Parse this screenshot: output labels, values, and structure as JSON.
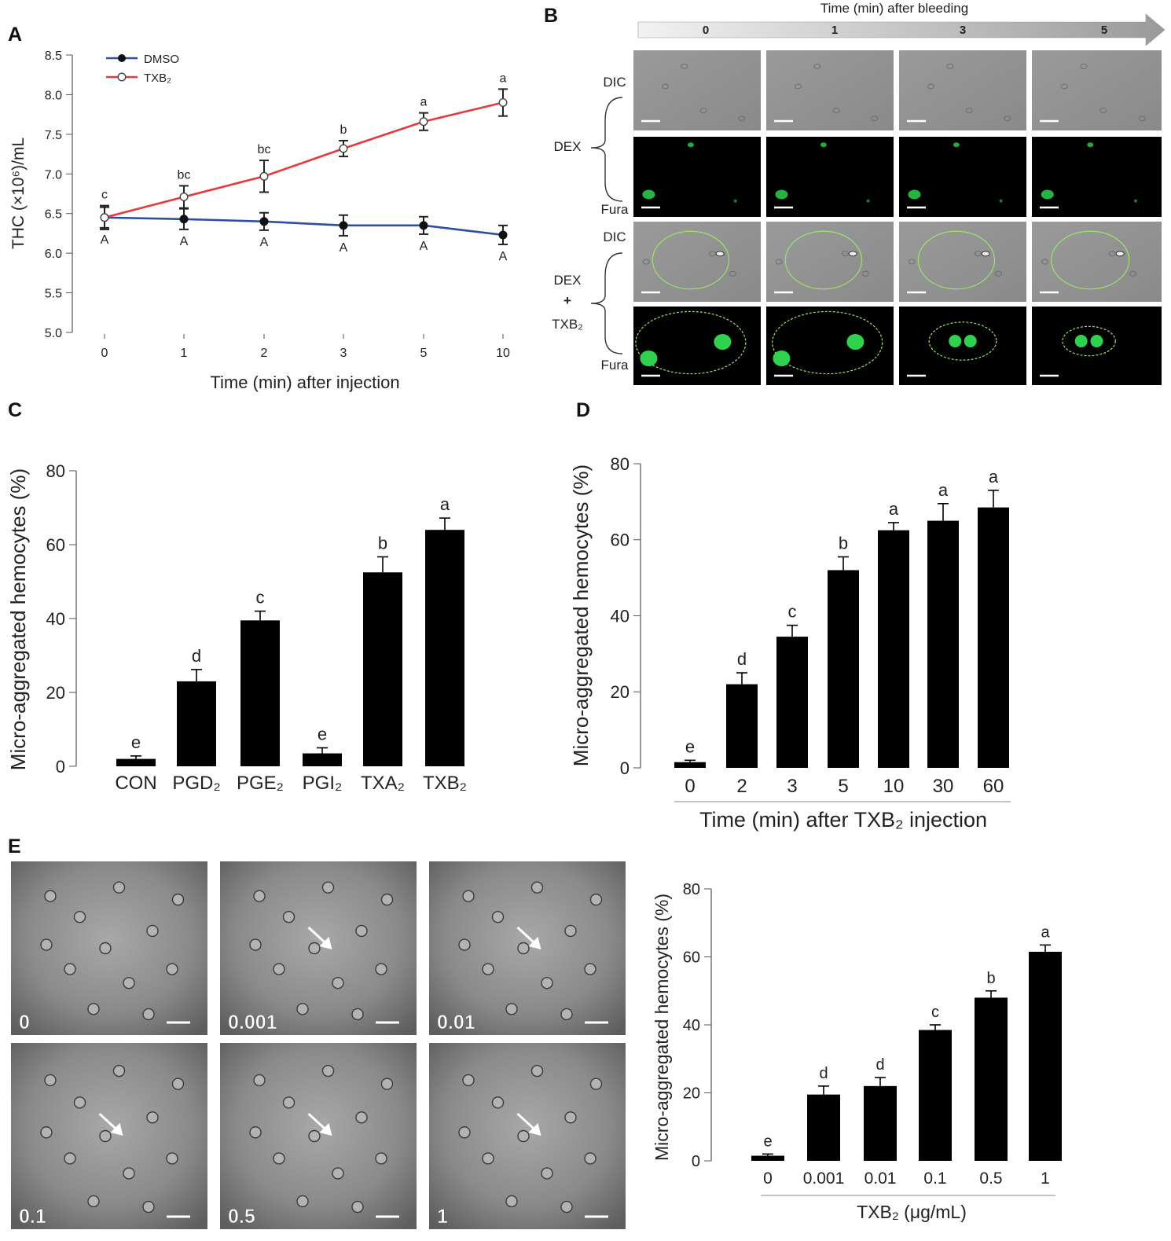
{
  "figure": {
    "panels": {
      "A": {
        "letter": "A"
      },
      "B": {
        "letter": "B"
      },
      "C": {
        "letter": "C"
      },
      "D": {
        "letter": "D"
      },
      "E": {
        "letter": "E"
      }
    }
  },
  "chart_data": [
    {
      "id": "A",
      "type": "line",
      "xlabel": "Time (min) after injection",
      "ylabel": "THC (×10⁶)/mL",
      "ylim": [
        5.0,
        8.5
      ],
      "yticks": [
        "5.0",
        "5.5",
        "6.0",
        "6.5",
        "7.0",
        "7.5",
        "8.0",
        "8.5"
      ],
      "categories": [
        "0",
        "1",
        "2",
        "3",
        "5",
        "10"
      ],
      "legend_position": "top-left",
      "series": [
        {
          "name": "DMSO",
          "color": "#2e4fa0",
          "marker": "filled-circle",
          "values": [
            6.45,
            6.43,
            6.4,
            6.35,
            6.35,
            6.23
          ],
          "errors": [
            0.13,
            0.13,
            0.11,
            0.13,
            0.11,
            0.12
          ],
          "letters": [
            "A",
            "A",
            "A",
            "A",
            "A",
            "A"
          ]
        },
        {
          "name": "TXB₂",
          "color": "#e8383d",
          "marker": "open-circle",
          "values": [
            6.45,
            6.71,
            6.97,
            7.32,
            7.66,
            7.9
          ],
          "errors": [
            0.15,
            0.14,
            0.2,
            0.1,
            0.11,
            0.17
          ],
          "letters": [
            "c",
            "bc",
            "bc",
            "b",
            "a",
            "a"
          ]
        }
      ]
    },
    {
      "id": "C",
      "type": "bar",
      "ylabel": "Micro-aggregated hemocytes (%)",
      "ylim": [
        0,
        80
      ],
      "yticks": [
        "0",
        "20",
        "40",
        "60",
        "80"
      ],
      "categories": [
        "CON",
        "PGD₂",
        "PGE₂",
        "PGI₂",
        "TXA₂",
        "TXB₂"
      ],
      "values": [
        2,
        23,
        39.5,
        3.5,
        52.5,
        64
      ],
      "errors": [
        0.8,
        3.2,
        2.5,
        1.5,
        4.2,
        3.2
      ],
      "letters": [
        "e",
        "d",
        "c",
        "e",
        "b",
        "a"
      ]
    },
    {
      "id": "D",
      "type": "bar",
      "xlabel": "Time (min) after TXB₂ injection",
      "ylabel": "Micro-aggregated hemocytes (%)",
      "ylim": [
        0,
        80
      ],
      "yticks": [
        "0",
        "20",
        "40",
        "60",
        "80"
      ],
      "categories": [
        "0",
        "2",
        "3",
        "5",
        "10",
        "30",
        "60"
      ],
      "values": [
        1.5,
        22,
        34.5,
        52,
        62.5,
        65,
        68.5
      ],
      "errors": [
        0.5,
        3,
        3,
        3.5,
        2,
        4.5,
        4.5
      ],
      "letters": [
        "e",
        "d",
        "c",
        "b",
        "a",
        "a",
        "a"
      ]
    },
    {
      "id": "E",
      "type": "bar",
      "xlabel": "TXB₂ (μg/mL)",
      "ylabel": "Micro-aggregated hemocytes (%)",
      "ylim": [
        0,
        80
      ],
      "yticks": [
        "0",
        "20",
        "40",
        "60",
        "80"
      ],
      "categories": [
        "0",
        "0.001",
        "0.01",
        "0.1",
        "0.5",
        "1"
      ],
      "values": [
        1.5,
        19.5,
        22,
        38.5,
        48,
        61.5
      ],
      "errors": [
        0.5,
        2.5,
        2.5,
        1.5,
        2,
        2
      ],
      "letters": [
        "e",
        "d",
        "d",
        "c",
        "b",
        "a"
      ]
    }
  ],
  "panel_b": {
    "arrow_title": "Time (min) after bleeding",
    "time_labels": [
      "0",
      "1",
      "3",
      "5"
    ],
    "group_labels": {
      "dex": "DEX",
      "dex_txb2_line1": "DEX",
      "dex_txb2_plus": "+",
      "dex_txb2_line2": "TXB₂"
    },
    "row_labels": [
      "DIC",
      "Fura",
      "DIC",
      "Fura"
    ],
    "colors": {
      "fluorescence_bg": "#000000",
      "cell_green": "#2fd14f",
      "circle": "#9be36b"
    }
  },
  "panel_e_micrographs": {
    "labels": [
      "0",
      "0.001",
      "0.01",
      "0.1",
      "0.5",
      "1"
    ]
  }
}
